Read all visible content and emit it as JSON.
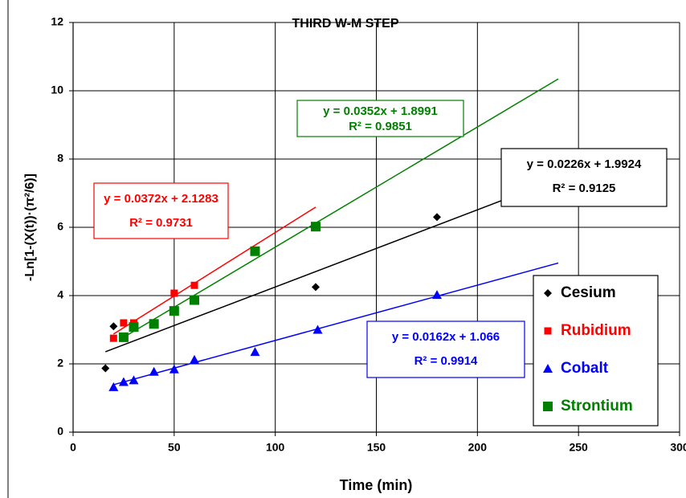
{
  "chart_data": {
    "type": "scatter",
    "title": "THIRD W-M STEP",
    "x_label": "Time (min)",
    "y_label": "-Ln[1-(X(t))·(π²/6)]",
    "xlim": [
      0,
      300
    ],
    "xticks": [
      0,
      50,
      100,
      150,
      200,
      250,
      300
    ],
    "ylim": [
      0,
      12
    ],
    "yticks": [
      0,
      2,
      4,
      6,
      8,
      10,
      12
    ],
    "grid": true,
    "legend_position": "right",
    "series": [
      {
        "name": "Cesium",
        "color": "#000000",
        "marker": "diamond",
        "x": [
          16,
          20,
          120,
          180
        ],
        "values": [
          1.87,
          3.1,
          4.25,
          6.3
        ],
        "trendline": {
          "slope": 0.0226,
          "intercept": 1.9924,
          "x_start": 16,
          "x_end": 240,
          "equation": "y = 0.0226x + 1.9924",
          "r_squared": 0.9125,
          "r_squared_label": "R² = 0.9125"
        }
      },
      {
        "name": "Rubidium",
        "color": "#ff0000",
        "marker": "square",
        "x": [
          20,
          25,
          30,
          50,
          60
        ],
        "values": [
          2.75,
          3.2,
          3.2,
          4.07,
          4.3
        ],
        "trendline": {
          "slope": 0.0372,
          "intercept": 2.1283,
          "x_start": 20,
          "x_end": 120,
          "equation": "y = 0.0372x + 2.1283",
          "r_squared": 0.9731,
          "r_squared_label": "R² = 0.9731"
        }
      },
      {
        "name": "Cobalt",
        "color": "#0000ff",
        "marker": "triangle",
        "x": [
          20,
          25,
          30,
          40,
          50,
          60,
          90,
          121,
          180
        ],
        "values": [
          1.32,
          1.47,
          1.52,
          1.77,
          1.84,
          2.12,
          2.35,
          3.0,
          4.02
        ],
        "trendline": {
          "slope": 0.0162,
          "intercept": 1.066,
          "x_start": 20,
          "x_end": 240,
          "equation": "y = 0.0162x + 1.066",
          "r_squared": 0.9914,
          "r_squared_label": "R² = 0.9914"
        }
      },
      {
        "name": "Strontium",
        "color": "#008000",
        "marker": "bigsquare",
        "x": [
          25,
          30,
          40,
          50,
          60,
          90,
          120
        ],
        "values": [
          2.78,
          3.08,
          3.17,
          3.55,
          3.87,
          5.3,
          6.02
        ],
        "trendline": {
          "slope": 0.0352,
          "intercept": 1.8991,
          "x_start": 25,
          "x_end": 240,
          "equation": "y = 0.0352x + 1.8991",
          "r_squared": 0.9851,
          "r_squared_label": "R² = 0.9851"
        }
      }
    ]
  }
}
